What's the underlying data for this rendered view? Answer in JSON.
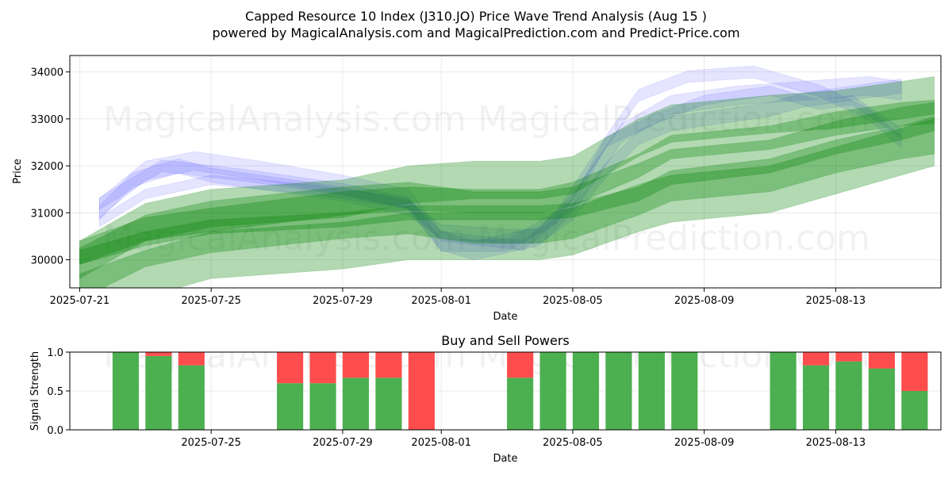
{
  "header": {
    "title_line1": "Capped Resource 10 Index (J310.JO) Price Wave Trend Analysis (Aug 15 )",
    "title_line2": "powered by MagicalAnalysis.com and MagicalPrediction.com and Predict-Price.com"
  },
  "watermarks": {
    "w1": "MagicalAnalysis.com",
    "w2": "MagicalPrediction.com"
  },
  "chart_data": [
    {
      "type": "area",
      "title": "Capped Resource 10 Index (J310.JO) Price Wave Trend Analysis (Aug 15 )",
      "xlabel": "Date",
      "ylabel": "Price",
      "x_ticks": [
        "2025-07-21",
        "2025-07-25",
        "2025-07-29",
        "2025-08-01",
        "2025-08-05",
        "2025-08-09",
        "2025-08-13"
      ],
      "x_tick_days": [
        0,
        4,
        8,
        11,
        15,
        19,
        23
      ],
      "x_range_days": [
        -0.3,
        26.2
      ],
      "y_ticks": [
        30000,
        31000,
        32000,
        33000,
        34000
      ],
      "ylim": [
        29400,
        34350
      ],
      "grid": true,
      "series": [
        {
          "name": "blue wave band",
          "color": "#3333ff",
          "width": 300,
          "x": [
            0.6,
            1.6,
            3.0,
            4.0,
            6.0,
            8.0,
            10.0,
            11.0,
            13.0,
            14.0,
            15.0,
            16.0,
            17.0,
            18.0,
            19.0,
            21.0,
            22.0,
            23.0,
            24.0,
            25.0
          ],
          "y": [
            31000,
            31700,
            32000,
            31800,
            31600,
            31400,
            31100,
            30600,
            30500,
            30500,
            31000,
            31900,
            32600,
            32900,
            33000,
            33200,
            33400,
            33500,
            33600,
            33700
          ]
        },
        {
          "name": "blue wave band",
          "color": "#3333ff",
          "width": 400,
          "x": [
            0.6,
            2.0,
            3.5,
            5.5,
            8.0,
            10.0,
            11.0,
            12.0,
            14.0,
            15.0,
            16.5,
            18.0,
            20.0,
            22.0,
            24.0,
            25.0
          ],
          "y": [
            31100,
            31900,
            32100,
            31900,
            31600,
            31300,
            30400,
            30200,
            30500,
            31200,
            32700,
            33300,
            33500,
            33600,
            33700,
            33600
          ]
        },
        {
          "name": "blue wave band",
          "color": "#3333ff",
          "width": 250,
          "x": [
            0.6,
            2.5,
            5.0,
            8.0,
            10.0,
            11.0,
            13.0,
            14.5,
            16.0,
            17.0,
            18.5,
            20.5,
            22.5,
            24.0,
            25.0
          ],
          "y": [
            31200,
            32000,
            31800,
            31500,
            31200,
            30300,
            30300,
            30900,
            32500,
            33500,
            33900,
            34000,
            33600,
            33100,
            32500
          ]
        },
        {
          "name": "blue wave band",
          "color": "#3333ff",
          "width": 200,
          "x": [
            0.6,
            2.0,
            4.0,
            7.0,
            10.0,
            11.0,
            13.5,
            15.0,
            16.0,
            17.5,
            19.0,
            21.0,
            22.5,
            23.5,
            25.0
          ],
          "y": [
            30800,
            31400,
            31700,
            31500,
            31200,
            30500,
            30300,
            31200,
            32500,
            33000,
            33400,
            33600,
            33300,
            33400,
            32700
          ]
        },
        {
          "name": "green wave band",
          "color": "#008000",
          "width": 800,
          "x": [
            0.0,
            2.0,
            4.0,
            8.0,
            10.0,
            12.0,
            14.0,
            15.0,
            17.0,
            18.0,
            21.0,
            23.0,
            25.0,
            26.0
          ],
          "y": [
            30000,
            30800,
            31100,
            31300,
            31600,
            31700,
            31700,
            31800,
            32600,
            32900,
            33100,
            33200,
            33400,
            33500
          ]
        },
        {
          "name": "green wave band",
          "color": "#008000",
          "width": 500,
          "x": [
            0.0,
            2.0,
            4.0,
            8.0,
            10.0,
            12.0,
            14.0,
            15.0,
            17.0,
            18.0,
            21.0,
            23.0,
            25.0,
            26.0
          ],
          "y": [
            30150,
            30650,
            30850,
            31200,
            31300,
            31250,
            31250,
            31400,
            32000,
            32400,
            32600,
            32900,
            33100,
            33150
          ]
        },
        {
          "name": "green wave band",
          "color": "#008000",
          "width": 1100,
          "x": [
            0.0,
            2.0,
            4.0,
            8.0,
            10.0,
            12.0,
            14.0,
            15.0,
            17.0,
            18.0,
            21.0,
            23.0,
            25.0,
            26.0
          ],
          "y": [
            29700,
            30400,
            30700,
            31000,
            31100,
            30900,
            30900,
            31000,
            31500,
            31800,
            32000,
            32400,
            32700,
            32800
          ]
        },
        {
          "name": "green wave band",
          "color": "#008000",
          "width": 300,
          "x": [
            0.0,
            2.0,
            4.0,
            8.0,
            10.0,
            12.0,
            14.0,
            15.0,
            17.0,
            18.0,
            21.0,
            23.0,
            25.0,
            26.0
          ],
          "y": [
            30050,
            30450,
            30700,
            30850,
            31000,
            31000,
            31000,
            31050,
            31400,
            31750,
            32000,
            32400,
            32700,
            32900
          ]
        },
        {
          "name": "green wave band",
          "color": "#008000",
          "width": 1000,
          "x": [
            0.0,
            2.0,
            4.0,
            8.0,
            10.0,
            12.0,
            14.0,
            15.0,
            17.0,
            18.0,
            21.0,
            23.0,
            25.0,
            26.0
          ],
          "y": [
            29200,
            29700,
            30100,
            30300,
            30500,
            30500,
            30500,
            30600,
            31100,
            31300,
            31500,
            31900,
            32300,
            32500
          ]
        }
      ]
    },
    {
      "type": "bar",
      "title": "Buy and Sell Powers",
      "xlabel": "Date",
      "ylabel": "Signal Strength",
      "x_ticks": [
        "2025-07-25",
        "2025-07-29",
        "2025-08-01",
        "2025-08-05",
        "2025-08-09",
        "2025-08-13"
      ],
      "x_tick_days": [
        4,
        8,
        11,
        15,
        19,
        23
      ],
      "x_range_days": [
        -0.3,
        26.2
      ],
      "y_ticks": [
        "0.0",
        "0.5",
        "1.0"
      ],
      "ylim": [
        0,
        1
      ],
      "grid": true,
      "bar_days": [
        1.4,
        2.4,
        3.4,
        6.4,
        7.4,
        8.4,
        9.4,
        10.4,
        13.4,
        14.4,
        15.4,
        16.4,
        17.4,
        18.4,
        21.4,
        22.4,
        23.4,
        24.4,
        25.4
      ],
      "series": [
        {
          "name": "Buy",
          "color": "#4caf50",
          "values": [
            1.0,
            0.95,
            0.83,
            0.6,
            0.6,
            0.67,
            0.67,
            0.0,
            0.67,
            1.0,
            1.0,
            1.0,
            1.0,
            1.0,
            1.0,
            0.83,
            0.88,
            0.79,
            0.5
          ]
        },
        {
          "name": "Sell",
          "color": "#ff4d4d",
          "values": [
            0.0,
            0.05,
            0.17,
            0.4,
            0.4,
            0.33,
            0.33,
            1.0,
            0.33,
            0.0,
            0.0,
            0.0,
            0.0,
            0.0,
            0.0,
            0.17,
            0.12,
            0.21,
            0.5
          ]
        }
      ]
    }
  ]
}
